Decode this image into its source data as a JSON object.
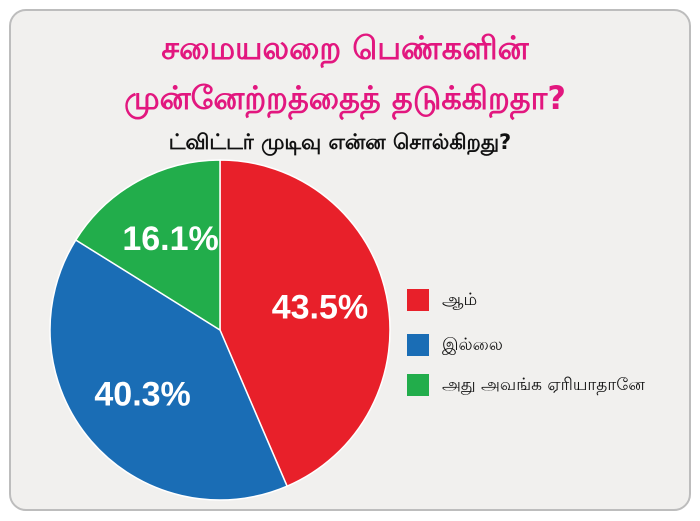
{
  "chart_data": {
    "type": "pie",
    "title": [
      "சமையலறை பெண்களின்",
      "முன்னேற்றத்தைத் தடுக்கிறதா?"
    ],
    "subtitle": "ட்விட்டர் முடிவு என்ன சொல்கிறது?",
    "categories": [
      "ஆம்",
      "இல்லை",
      "அது அவங்க ஏரியாதானே"
    ],
    "values": [
      43.5,
      40.3,
      16.1
    ],
    "value_labels": [
      "43.5%",
      "40.3%",
      "16.1%"
    ],
    "colors": [
      "#e8202a",
      "#1a6db5",
      "#22ad4b"
    ],
    "legend": "right"
  }
}
